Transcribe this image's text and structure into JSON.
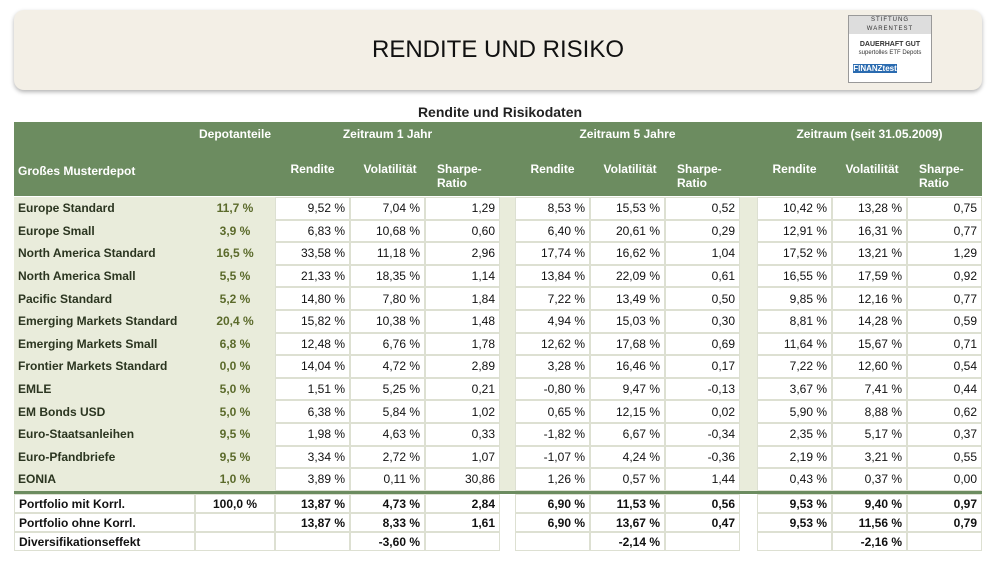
{
  "header": {
    "title": "RENDITE UND RISIKO",
    "badge": {
      "org": "STIFTUNG WARENTEST",
      "rating": "DAUERHAFT GUT",
      "subject": "supertolles ETF Depots",
      "brand": "FINANZtest"
    }
  },
  "table": {
    "caption": "Rendite und Risikodaten",
    "corner": "Großes Musterdepot",
    "share_header": "Depotanteile",
    "periods": [
      "Zeitraum 1 Jahr",
      "Zeitraum 5 Jahre",
      "Zeitraum (seit 31.05.2009)"
    ],
    "columns": [
      "Rendite",
      "Volatilität",
      "Sharpe-Ratio"
    ],
    "rows": [
      [
        "Europe Standard",
        "11,7 %",
        "9,52 %",
        "7,04 %",
        "1,29",
        "8,53 %",
        "15,53 %",
        "0,52",
        "10,42 %",
        "13,28 %",
        "0,75"
      ],
      [
        "Europe Small",
        "3,9 %",
        "6,83 %",
        "10,68 %",
        "0,60",
        "6,40 %",
        "20,61 %",
        "0,29",
        "12,91 %",
        "16,31 %",
        "0,77"
      ],
      [
        "North America Standard",
        "16,5 %",
        "33,58 %",
        "11,18 %",
        "2,96",
        "17,74 %",
        "16,62 %",
        "1,04",
        "17,52 %",
        "13,21 %",
        "1,29"
      ],
      [
        "North America Small",
        "5,5 %",
        "21,33 %",
        "18,35 %",
        "1,14",
        "13,84 %",
        "22,09 %",
        "0,61",
        "16,55 %",
        "17,59 %",
        "0,92"
      ],
      [
        "Pacific Standard",
        "5,2 %",
        "14,80 %",
        "7,80 %",
        "1,84",
        "7,22 %",
        "13,49 %",
        "0,50",
        "9,85 %",
        "12,16 %",
        "0,77"
      ],
      [
        "Emerging Markets Standard",
        "20,4 %",
        "15,82 %",
        "10,38 %",
        "1,48",
        "4,94 %",
        "15,03 %",
        "0,30",
        "8,81 %",
        "14,28 %",
        "0,59"
      ],
      [
        "Emerging Markets Small",
        "6,8 %",
        "12,48 %",
        "6,76 %",
        "1,78",
        "12,62 %",
        "17,68 %",
        "0,69",
        "11,64 %",
        "15,67 %",
        "0,71"
      ],
      [
        "Frontier Markets Standard",
        "0,0 %",
        "14,04 %",
        "4,72 %",
        "2,89",
        "3,28 %",
        "16,46 %",
        "0,17",
        "7,22 %",
        "12,60 %",
        "0,54"
      ],
      [
        "EMLE",
        "5,0 %",
        "1,51 %",
        "5,25 %",
        "0,21",
        "-0,80 %",
        "9,47 %",
        "-0,13",
        "3,67 %",
        "7,41 %",
        "0,44"
      ],
      [
        "EM Bonds USD",
        "5,0 %",
        "6,38 %",
        "5,84 %",
        "1,02",
        "0,65 %",
        "12,15 %",
        "0,02",
        "5,90 %",
        "8,88 %",
        "0,62"
      ],
      [
        "Euro-Staatsanleihen",
        "9,5 %",
        "1,98 %",
        "4,63 %",
        "0,33",
        "-1,82 %",
        "6,67 %",
        "-0,34",
        "2,35 %",
        "5,17 %",
        "0,37"
      ],
      [
        "Euro-Pfandbriefe",
        "9,5 %",
        "3,34 %",
        "2,72 %",
        "1,07",
        "-1,07 %",
        "4,24 %",
        "-0,36",
        "2,19 %",
        "3,21 %",
        "0,55"
      ],
      [
        "EONIA",
        "1,0 %",
        "3,89 %",
        "0,11 %",
        "30,86",
        "1,26 %",
        "0,57 %",
        "1,44",
        "0,43 %",
        "0,37 %",
        "0,00"
      ]
    ],
    "summary": [
      [
        "Portfolio mit Korrl.",
        "100,0 %",
        "13,87 %",
        "4,73 %",
        "2,84",
        "6,90 %",
        "11,53 %",
        "0,56",
        "9,53 %",
        "9,40 %",
        "0,97"
      ],
      [
        "Portfolio ohne Korrl.",
        null,
        "13,87 %",
        "8,33 %",
        "1,61",
        "6,90 %",
        "13,67 %",
        "0,47",
        "9,53 %",
        "11,56 %",
        "0,79"
      ],
      [
        "Diversifikationseffekt",
        null,
        null,
        "-3,60 %",
        null,
        null,
        "-2,14 %",
        null,
        null,
        "-2,16 %",
        null
      ]
    ]
  }
}
